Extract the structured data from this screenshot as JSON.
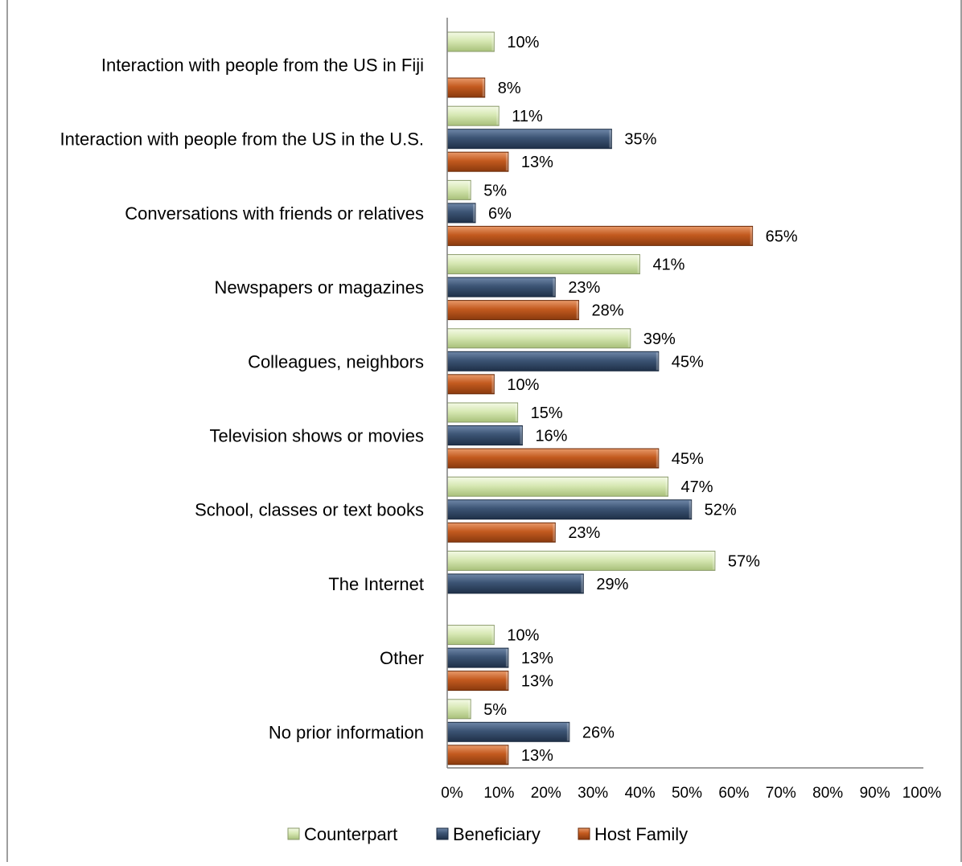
{
  "chart_data": {
    "type": "bar",
    "orientation": "horizontal",
    "title": "",
    "xlabel": "",
    "ylabel": "",
    "xlim": [
      0,
      100
    ],
    "value_suffix": "%",
    "x_ticks": [
      "0%",
      "10%",
      "20%",
      "30%",
      "40%",
      "50%",
      "60%",
      "70%",
      "80%",
      "90%",
      "100%"
    ],
    "categories": [
      "Interaction with people from the US in Fiji",
      "Interaction with people from the US in the U.S.",
      "Conversations with friends or relatives",
      "Newspapers or magazines",
      "Colleagues, neighbors",
      "Television shows or movies",
      "School, classes or text books",
      "The Internet",
      "Other",
      "No prior information"
    ],
    "series": [
      {
        "name": "Counterpart",
        "color": "#d7e8b4",
        "values": [
          10,
          11,
          5,
          41,
          39,
          15,
          47,
          57,
          10,
          5
        ]
      },
      {
        "name": "Beneficiary",
        "color": "#3c5474",
        "values": [
          null,
          35,
          6,
          23,
          45,
          16,
          52,
          29,
          13,
          26
        ]
      },
      {
        "name": "Host Family",
        "color": "#c35a1f",
        "values": [
          8,
          13,
          65,
          28,
          10,
          45,
          23,
          null,
          13,
          13
        ]
      }
    ],
    "grid": false,
    "legend_position": "bottom"
  }
}
